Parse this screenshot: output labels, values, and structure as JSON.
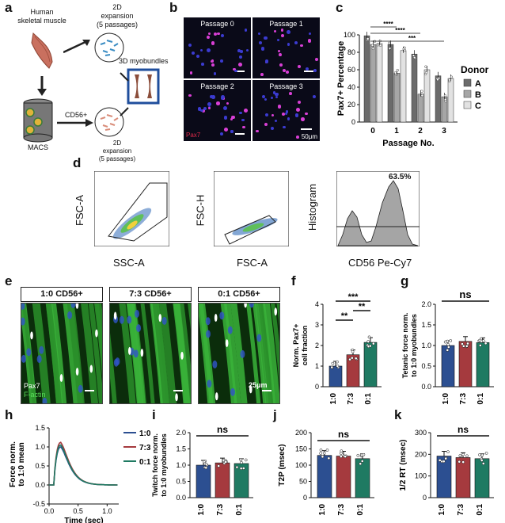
{
  "panels": {
    "a": "a",
    "b": "b",
    "c": "c",
    "d": "d",
    "e": "e",
    "f": "f",
    "g": "g",
    "h": "h",
    "i": "i",
    "j": "j",
    "k": "k"
  },
  "panel_a": {
    "source": "Human\nskeletal muscle",
    "expansion_top": "2D\nexpansion\n(5 passages)",
    "expansion_bottom": "2D\nexpansion\n(5 passages)",
    "myobundles": "3D myobundles",
    "cd56": "CD56+",
    "macs": "MACS"
  },
  "panel_b": {
    "tiles": [
      "Passage 0",
      "Passage 1",
      "Passage 2",
      "Passage 3"
    ],
    "stain": "Pax7",
    "scale": "50μm"
  },
  "panel_e": {
    "conditions": [
      "1:0 CD56+",
      "7:3 CD56+",
      "0:1 CD56+"
    ],
    "stain1": "Pax7",
    "stain2": "F-actin",
    "scale": "25μm"
  },
  "panel_d": {
    "plot1": {
      "xlabel": "SSC-A",
      "ylabel": "FSC-A"
    },
    "plot2": {
      "xlabel": "FSC-A",
      "ylabel": "FSC-H"
    },
    "plot3": {
      "xlabel": "CD56 Pe-Cy7",
      "ylabel": "Histogram",
      "gate": "63.5%"
    }
  },
  "colors": {
    "blue": "#2c4f91",
    "red": "#a53a3e",
    "green": "#1f7a62",
    "gA": "#6b6b6b",
    "gB": "#a6a6a6",
    "gC": "#e2e2e2"
  },
  "chart_data": [
    {
      "id": "c",
      "type": "bar",
      "ylabel": "Pax7+ Percentage",
      "xlabel": "Passage No.",
      "categories": [
        "0",
        "1",
        "2",
        "3"
      ],
      "ylim": [
        0,
        100
      ],
      "yticks": [
        "0",
        "20",
        "40",
        "60",
        "80",
        "100"
      ],
      "legend_title": "Donor",
      "series": [
        {
          "name": "A",
          "values": [
            99,
            89,
            78,
            53
          ]
        },
        {
          "name": "B",
          "values": [
            89,
            56,
            32,
            29
          ]
        },
        {
          "name": "C",
          "values": [
            90,
            82,
            60,
            50
          ]
        }
      ],
      "significance": [
        "****",
        "****",
        "***"
      ]
    },
    {
      "id": "f",
      "type": "bar",
      "ylabel": "Norm. Pax7+\ncell fraction",
      "categories": [
        "1:0",
        "7:3",
        "0:1"
      ],
      "values": [
        1.0,
        1.55,
        2.15
      ],
      "ylim": [
        0,
        4
      ],
      "yticks": [
        "0",
        "1",
        "2",
        "3",
        "4"
      ],
      "significance": [
        "***",
        "**",
        "**"
      ]
    },
    {
      "id": "g",
      "type": "bar",
      "ylabel": "Tetanic force norm.\nto 1:0 myobundles",
      "categories": [
        "1:0",
        "7:3",
        "0:1"
      ],
      "values": [
        1.0,
        1.1,
        1.07
      ],
      "ylim": [
        0,
        2.0
      ],
      "yticks": [
        "0.0",
        "0.5",
        "1.0",
        "1.5",
        "2.0"
      ],
      "significance": [
        "ns"
      ]
    },
    {
      "id": "h",
      "type": "line",
      "ylabel": "Force norm.\nto 1:0 mean",
      "xlabel": "Time (sec)",
      "xlim": [
        0,
        1.2
      ],
      "ylim": [
        -0.5,
        1.5
      ],
      "xticks": [
        "0.0",
        "0.5",
        "1.0"
      ],
      "yticks": [
        "-0.5",
        "0.0",
        "0.5",
        "1.0",
        "1.5"
      ],
      "series": [
        {
          "name": "1:0",
          "peak": 1.0
        },
        {
          "name": "7:3",
          "peak": 1.12
        },
        {
          "name": "0:1",
          "peak": 1.05
        }
      ]
    },
    {
      "id": "i",
      "type": "bar",
      "ylabel": "Twitch force norm.\nto 1:0 myobundles",
      "categories": [
        "1:0",
        "7:3",
        "0:1"
      ],
      "values": [
        1.0,
        1.07,
        1.05
      ],
      "ylim": [
        0,
        2.0
      ],
      "yticks": [
        "0.0",
        "0.5",
        "1.0",
        "1.5",
        "2.0"
      ],
      "significance": [
        "ns"
      ]
    },
    {
      "id": "j",
      "type": "bar",
      "ylabel": "T2P (msec)",
      "categories": [
        "1:0",
        "7:3",
        "0:1"
      ],
      "values": [
        130,
        128,
        120
      ],
      "ylim": [
        0,
        200
      ],
      "yticks": [
        "0",
        "50",
        "100",
        "150",
        "200"
      ],
      "significance": [
        "ns"
      ]
    },
    {
      "id": "k",
      "type": "bar",
      "ylabel": "1/2 RT (msec)",
      "categories": [
        "1:0",
        "7:3",
        "0:1"
      ],
      "values": [
        192,
        185,
        180
      ],
      "ylim": [
        0,
        300
      ],
      "yticks": [
        "0",
        "100",
        "200",
        "300"
      ],
      "significance": [
        "ns"
      ]
    }
  ]
}
